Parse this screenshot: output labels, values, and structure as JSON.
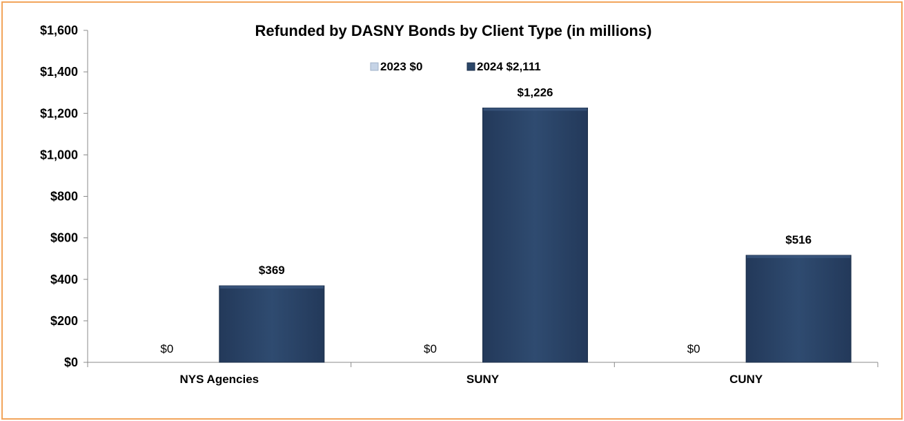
{
  "chart_data": {
    "type": "bar",
    "title": "Refunded by DASNY Bonds by Client Type (in millions)",
    "categories": [
      "NYS Agencies",
      "SUNY",
      "CUNY"
    ],
    "series": [
      {
        "name": "2023 $0",
        "values": [
          0,
          0,
          0
        ],
        "color": "#c5d3e6",
        "labels": [
          "$0",
          "$0",
          "$0"
        ]
      },
      {
        "name": "2024 $2,111",
        "values": [
          369,
          1226,
          516
        ],
        "color": "#2b4668",
        "labels": [
          "$369",
          "$1,226",
          "$516"
        ]
      }
    ],
    "ylim": [
      0,
      1600
    ],
    "y_ticks": [
      0,
      200,
      400,
      600,
      800,
      1000,
      1200,
      1400,
      1600
    ],
    "y_tick_labels": [
      "$0",
      "$200",
      "$400",
      "$600",
      "$800",
      "$1,000",
      "$1,200",
      "$1,400",
      "$1,600"
    ],
    "xlabel": "",
    "ylabel": "",
    "grid": false,
    "legend_position": "top-center",
    "frame_color": "#f2a45a"
  }
}
